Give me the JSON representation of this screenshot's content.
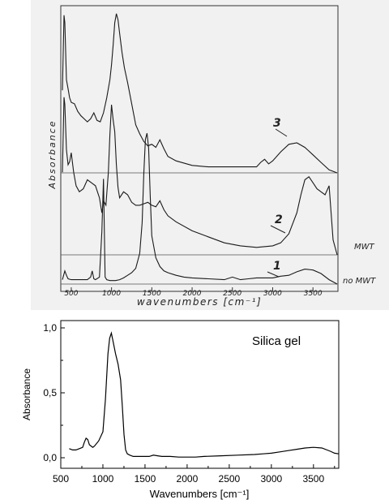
{
  "chart_data": [
    {
      "type": "line",
      "xlabel": "wavenumbers [cm⁻¹]",
      "ylabel": "Absorbance",
      "xlim": [
        380,
        3800
      ],
      "x_ticks": [
        500,
        1000,
        1500,
        2000,
        2500,
        3000,
        3500
      ],
      "tick_labels": [
        "500",
        "1000",
        "1500",
        "2000",
        "2500",
        "3000",
        "3500"
      ],
      "grid": false,
      "line_color": "#1a1a1a",
      "baseline_labels": [
        "MWT",
        "no MWT"
      ],
      "series": [
        {
          "name": "3",
          "x": [
            390,
            410,
            420,
            440,
            460,
            480,
            500,
            540,
            580,
            620,
            660,
            700,
            740,
            780,
            820,
            860,
            900,
            940,
            980,
            1000,
            1020,
            1040,
            1060,
            1080,
            1100,
            1130,
            1160,
            1200,
            1250,
            1300,
            1350,
            1400,
            1450,
            1500,
            1550,
            1600,
            1650,
            1700,
            1800,
            2000,
            2200,
            2400,
            2600,
            2800,
            2850,
            2900,
            2950,
            3000,
            3100,
            3200,
            3300,
            3400,
            3500,
            3600,
            3700,
            3800
          ],
          "y": [
            0.55,
            1.05,
            1.0,
            0.62,
            0.56,
            0.5,
            0.47,
            0.46,
            0.41,
            0.38,
            0.36,
            0.34,
            0.36,
            0.4,
            0.35,
            0.34,
            0.4,
            0.5,
            0.62,
            0.72,
            0.85,
            1.0,
            1.06,
            1.02,
            0.93,
            0.8,
            0.7,
            0.6,
            0.46,
            0.32,
            0.26,
            0.21,
            0.18,
            0.19,
            0.17,
            0.22,
            0.16,
            0.11,
            0.08,
            0.05,
            0.04,
            0.04,
            0.04,
            0.04,
            0.07,
            0.09,
            0.06,
            0.08,
            0.14,
            0.19,
            0.2,
            0.17,
            0.12,
            0.07,
            0.02,
            0.0
          ]
        },
        {
          "name": "2",
          "x": [
            390,
            410,
            420,
            440,
            460,
            480,
            500,
            530,
            560,
            600,
            650,
            700,
            750,
            800,
            850,
            880,
            900,
            930,
            960,
            980,
            1000,
            1020,
            1040,
            1060,
            1080,
            1100,
            1150,
            1200,
            1250,
            1300,
            1350,
            1400,
            1450,
            1500,
            1550,
            1600,
            1650,
            1700,
            1800,
            2000,
            2200,
            2400,
            2600,
            2800,
            3000,
            3100,
            3200,
            3300,
            3350,
            3400,
            3450,
            3500,
            3550,
            3600,
            3650,
            3700,
            3750,
            3800
          ],
          "y": [
            0.55,
            1.05,
            1.0,
            0.7,
            0.6,
            0.62,
            0.68,
            0.55,
            0.46,
            0.42,
            0.44,
            0.5,
            0.48,
            0.46,
            0.38,
            0.28,
            0.36,
            0.33,
            0.55,
            0.8,
            1.0,
            0.9,
            0.82,
            0.6,
            0.45,
            0.38,
            0.42,
            0.4,
            0.35,
            0.33,
            0.33,
            0.34,
            0.35,
            0.33,
            0.32,
            0.36,
            0.3,
            0.26,
            0.22,
            0.16,
            0.12,
            0.08,
            0.06,
            0.05,
            0.06,
            0.08,
            0.14,
            0.28,
            0.4,
            0.5,
            0.52,
            0.48,
            0.44,
            0.42,
            0.4,
            0.46,
            0.1,
            0.0
          ]
        },
        {
          "name": "1",
          "x": [
            390,
            420,
            440,
            460,
            500,
            560,
            620,
            700,
            740,
            760,
            780,
            800,
            850,
            880,
            900,
            920,
            940,
            980,
            1000,
            1050,
            1100,
            1150,
            1200,
            1250,
            1300,
            1350,
            1380,
            1400,
            1420,
            1440,
            1460,
            1480,
            1500,
            1550,
            1600,
            1650,
            1700,
            1800,
            1900,
            2000,
            2200,
            2400,
            2500,
            2600,
            2700,
            2800,
            2900,
            3000,
            3100,
            3200,
            3300,
            3400,
            3500,
            3600,
            3700,
            3800
          ],
          "y": [
            0.05,
            0.15,
            0.1,
            0.06,
            0.05,
            0.05,
            0.05,
            0.05,
            0.08,
            0.15,
            0.06,
            0.05,
            0.08,
            0.6,
            1.2,
            0.08,
            0.05,
            0.04,
            0.04,
            0.04,
            0.05,
            0.07,
            0.1,
            0.13,
            0.18,
            0.35,
            0.7,
            1.25,
            1.65,
            1.72,
            1.55,
            1.0,
            0.55,
            0.3,
            0.2,
            0.15,
            0.13,
            0.1,
            0.08,
            0.07,
            0.06,
            0.05,
            0.08,
            0.05,
            0.06,
            0.07,
            0.07,
            0.07,
            0.09,
            0.1,
            0.14,
            0.17,
            0.16,
            0.12,
            0.05,
            0.0
          ]
        }
      ]
    },
    {
      "type": "line",
      "ylabel": "Absorbance",
      "xlabel": "Wavenumbers [cm⁻¹]",
      "xlim": [
        500,
        3800
      ],
      "ylim": [
        -0.08,
        1.05
      ],
      "x_ticks": [
        500,
        1000,
        1500,
        2000,
        2500,
        3000,
        3500
      ],
      "tick_labels_x": [
        "500",
        "1000",
        "1500",
        "2000",
        "2500",
        "3000",
        "3500"
      ],
      "y_ticks": [
        0.0,
        0.5,
        1.0
      ],
      "tick_labels_y": [
        "0,0",
        "0,5",
        "1,0"
      ],
      "annotation": "Silica gel",
      "grid": false,
      "line_color": "#000000",
      "series": [
        {
          "x": [
            600,
            640,
            680,
            720,
            760,
            780,
            800,
            820,
            840,
            860,
            880,
            900,
            950,
            1000,
            1030,
            1060,
            1080,
            1100,
            1120,
            1150,
            1180,
            1210,
            1230,
            1250,
            1270,
            1290,
            1320,
            1360,
            1400,
            1450,
            1500,
            1550,
            1600,
            1650,
            1700,
            1800,
            1900,
            2000,
            2100,
            2200,
            2400,
            2600,
            2800,
            2900,
            3000,
            3100,
            3200,
            3300,
            3400,
            3500,
            3600,
            3700,
            3750,
            3800
          ],
          "y": [
            0.07,
            0.06,
            0.06,
            0.07,
            0.08,
            0.12,
            0.15,
            0.14,
            0.1,
            0.09,
            0.08,
            0.09,
            0.13,
            0.2,
            0.45,
            0.8,
            0.92,
            0.96,
            0.9,
            0.8,
            0.72,
            0.6,
            0.4,
            0.18,
            0.06,
            0.03,
            0.02,
            0.01,
            0.01,
            0.01,
            0.01,
            0.01,
            0.02,
            0.015,
            0.01,
            0.01,
            0.005,
            0.005,
            0.005,
            0.01,
            0.015,
            0.02,
            0.025,
            0.03,
            0.035,
            0.045,
            0.055,
            0.065,
            0.075,
            0.08,
            0.075,
            0.05,
            0.035,
            0.03
          ]
        }
      ]
    }
  ]
}
